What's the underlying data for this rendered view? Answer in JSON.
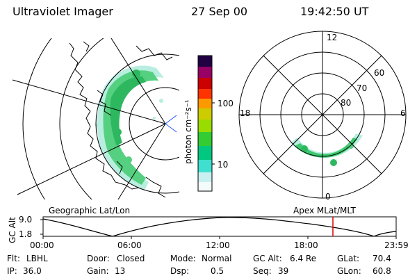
{
  "header": {
    "instrument": "Ultraviolet Imager",
    "date": "27 Sep 00",
    "time": "19:42:50 UT"
  },
  "colorbar": {
    "unit_label": "photon cm⁻²s⁻¹",
    "ticks": [
      "100",
      "10"
    ],
    "colors": [
      "#ffffff",
      "#c8f0f0",
      "#40e0d0",
      "#00c850",
      "#66dd00",
      "#cccc00",
      "#ff9900",
      "#ff3300",
      "#cc0000",
      "#990066",
      "#220044"
    ]
  },
  "left_map": {
    "label": "Geographic Lat/Lon",
    "aurora_color": "#3cc86e"
  },
  "polar_plot": {
    "label": "Apex MLat/MLT",
    "mlt_labels": {
      "top": "12",
      "left": "18",
      "right": "6",
      "bottom": "0"
    },
    "lat_labels": [
      "60",
      "70",
      "80"
    ]
  },
  "altitude_plot": {
    "axis_title": "GC Alt",
    "y_ticks": [
      "9.0",
      "1.8"
    ],
    "x_ticks": [
      "00:00",
      "06:00",
      "12:00",
      "18:00",
      "23:59"
    ],
    "marker_color": "#e00000"
  },
  "status": {
    "row1": [
      {
        "key": "Flt:",
        "value": "LBHL"
      },
      {
        "key": "Door:",
        "value": "Closed"
      },
      {
        "key": "Mode:",
        "value": "Normal"
      },
      {
        "key": "GC Alt:",
        "value": "6.4 Re"
      },
      {
        "key": "GLat:",
        "value": "70.4"
      }
    ],
    "row2": [
      {
        "key": "IP:",
        "value": "36.0"
      },
      {
        "key": "Gain:",
        "value": "13"
      },
      {
        "key": "Dsp:",
        "value": "0.5"
      },
      {
        "key": "Seq:",
        "value": "39"
      },
      {
        "key": "GLon:",
        "value": "60.8"
      }
    ]
  }
}
